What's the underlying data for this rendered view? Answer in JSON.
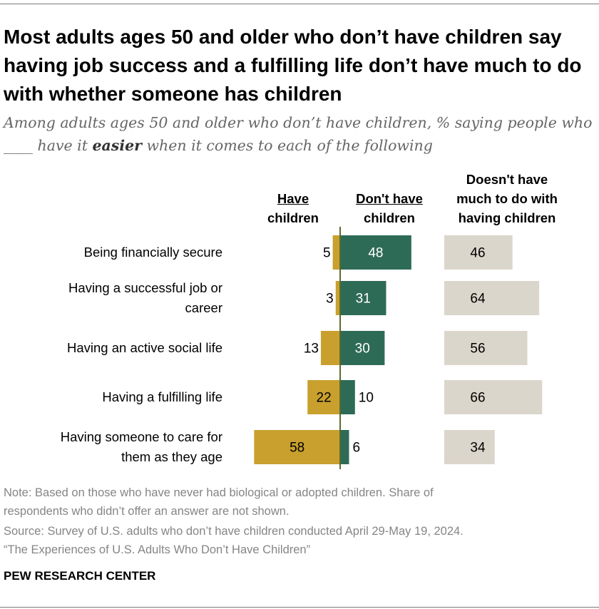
{
  "title": "Most adults ages 50 and older who don’t have children say having job success and a fulfilling life don’t have much to do with whether someone has children",
  "subtitle": {
    "part1": "Among adults ages 50 and older who don’t have children, % saying people who ",
    "blank": "____",
    "part2": " have it ",
    "emphasis": "easier",
    "part3": " when it comes to each of the following"
  },
  "headers": {
    "have_line1": "Have",
    "have_line2": "children",
    "dont_line1": "Don't have",
    "dont_line2": "children",
    "neutral_line1": "Doesn't have",
    "neutral_line2": "much to do with",
    "neutral_line3": "having children"
  },
  "colors": {
    "have": "#C9A02E",
    "dont": "#2E6B57",
    "neutral": "#DBD6CB",
    "axis": "#5a6b2e"
  },
  "chart_data": {
    "type": "bar",
    "title": "Most adults ages 50 and older who don’t have children say having job success and a fulfilling life don’t have much to do with whether someone has children",
    "categories": [
      "Being financially secure",
      "Having a successful job or career",
      "Having an active social life",
      "Having a fulfilling life",
      "Having someone to care for them as they age"
    ],
    "category_lines": [
      [
        "Being financially secure"
      ],
      [
        "Having a successful job or",
        "career"
      ],
      [
        "Having an active social life"
      ],
      [
        "Having a fulfilling life"
      ],
      [
        "Having someone to care for",
        "them as they age"
      ]
    ],
    "series": [
      {
        "name": "Have children",
        "values": [
          5,
          3,
          13,
          22,
          58
        ]
      },
      {
        "name": "Don't have children",
        "values": [
          48,
          31,
          30,
          10,
          6
        ]
      },
      {
        "name": "Doesn't have much to do with having children",
        "values": [
          46,
          64,
          56,
          66,
          34
        ]
      }
    ],
    "unit": "%",
    "xlim": [
      0,
      100
    ]
  },
  "note": {
    "line1": "Note: Based on those who have never had biological or adopted children. Share of",
    "line2": "respondents who didn’t offer an answer are not shown.",
    "line3": "Source: Survey of U.S. adults who don’t have children conducted April 29-May 19, 2024.",
    "line4": "“The Experiences of U.S. Adults Who Don’t Have Children”"
  },
  "source_org": "PEW RESEARCH CENTER"
}
